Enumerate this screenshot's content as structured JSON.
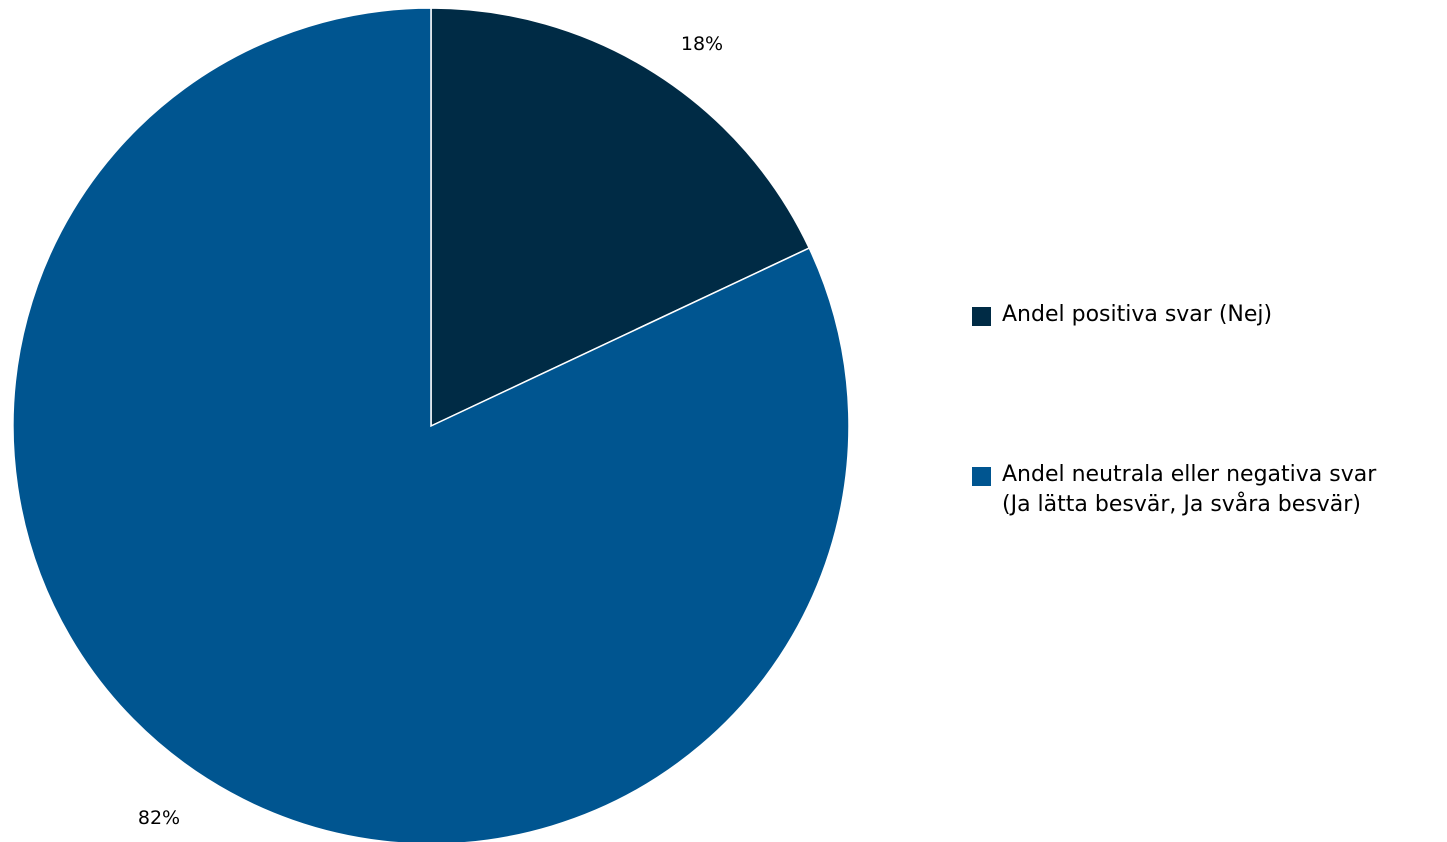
{
  "chart_data": {
    "type": "pie",
    "slices": [
      {
        "label": "Andel positiva svar (Nej)",
        "value": 18,
        "display": "18%",
        "color": "#002b45"
      },
      {
        "label": "Andel neutrala eller negativa svar (Ja lätta besvär, Ja svåra besvär)",
        "value": 82,
        "display": "82%",
        "color": "#005590"
      }
    ],
    "legend": {
      "position": "right",
      "items": [
        {
          "lines": [
            "Andel positiva svar (Nej)"
          ],
          "color": "#002b45"
        },
        {
          "lines": [
            "Andel neutrala eller negativa svar",
            "(Ja lätta besvär, Ja svåra besvär)"
          ],
          "color": "#005590"
        }
      ]
    }
  }
}
